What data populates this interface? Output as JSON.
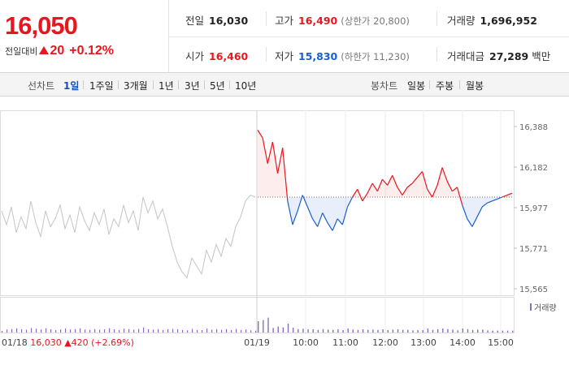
{
  "summary": {
    "current_price": "16,050",
    "change_label": "전일대비",
    "change_value": "20",
    "change_rate": "+0.12%",
    "prev_close_label": "전일",
    "prev_close": "16,030",
    "high_label": "고가",
    "high": "16,490",
    "upper_limit": "(상한가 20,800)",
    "volume_label": "거래량",
    "volume": "1,696,952",
    "open_label": "시가",
    "open": "16,460",
    "low_label": "저가",
    "low": "15,830",
    "lower_limit": "(하한가 11,230)",
    "trade_value_label": "거래대금",
    "trade_value": "27,289",
    "trade_value_unit": "백만"
  },
  "toolbar": {
    "line_label": "선차트",
    "line_periods": [
      "1일",
      "1주일",
      "3개월",
      "1년",
      "3년",
      "5년",
      "10년"
    ],
    "active_period": "1일",
    "candle_label": "봉차트",
    "candle_periods": [
      "일봉",
      "주봉",
      "월봉"
    ]
  },
  "colors": {
    "up": "#e8161e",
    "down": "#1a5fd0",
    "history": "#c4c4c4",
    "volume": "#8a6fb8"
  },
  "chart_data": {
    "type": "line",
    "y_ticks": [
      "16,388",
      "16,182",
      "15,977",
      "15,771",
      "15,565"
    ],
    "ylim": [
      15565,
      16388
    ],
    "reference_price": 16030,
    "x_ticks": [
      "01/19",
      "10:00",
      "11:00",
      "12:00",
      "13:00",
      "14:00",
      "15:00"
    ],
    "volume_legend": "거래량",
    "prev_day_label": {
      "date": "01/18",
      "close": "16,030",
      "change": "420",
      "rate": "(+2.69%)"
    },
    "prev_day_series": [
      15960,
      15890,
      15980,
      15850,
      15930,
      15870,
      16010,
      15900,
      15830,
      15960,
      15880,
      15920,
      15990,
      15870,
      15940,
      15850,
      15980,
      15910,
      15860,
      15950,
      15890,
      15970,
      15840,
      15920,
      15880,
      15990,
      15900,
      15960,
      15860,
      16030,
      15950,
      16010,
      15920,
      15970,
      15880,
      15780,
      15700,
      15650,
      15620,
      15720,
      15680,
      15640,
      15760,
      15700,
      15790,
      15730,
      15820,
      15780,
      15880,
      15930,
      16010,
      16040,
      16030
    ],
    "today_series": [
      16370,
      16330,
      16200,
      16310,
      16150,
      16280,
      16010,
      15890,
      15960,
      16040,
      15980,
      15920,
      15880,
      15950,
      15900,
      15860,
      15920,
      15890,
      15980,
      16030,
      16070,
      16010,
      16050,
      16100,
      16060,
      16120,
      16090,
      16140,
      16080,
      16040,
      16080,
      16100,
      16130,
      16160,
      16070,
      16030,
      16090,
      16180,
      16110,
      16060,
      16080,
      15990,
      15920,
      15880,
      15930,
      15980,
      16000,
      16010,
      16020,
      16030,
      16040,
      16050
    ]
  }
}
